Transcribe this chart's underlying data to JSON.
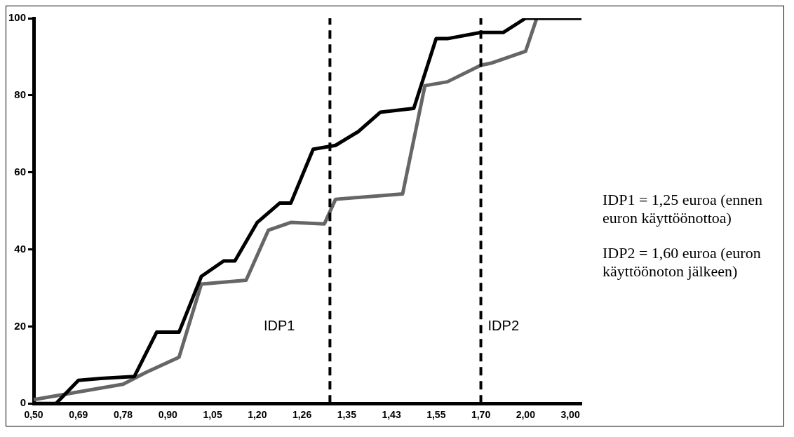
{
  "chart_data": {
    "type": "line",
    "categories": [
      "0,50",
      null,
      null,
      null,
      "0,69",
      null,
      null,
      null,
      "0,78",
      null,
      null,
      null,
      "0,90",
      null,
      null,
      null,
      "1,05",
      null,
      null,
      null,
      "1,20",
      null,
      null,
      null,
      "1,26",
      null,
      null,
      null,
      "1,35",
      null,
      null,
      null,
      "1,43",
      null,
      null,
      null,
      "1,55",
      null,
      null,
      null,
      "1,70",
      null,
      null,
      null,
      "2,00",
      null,
      null,
      null,
      "3,00",
      null
    ],
    "ylim": [
      0,
      100
    ],
    "yticks": [
      0,
      20,
      40,
      60,
      80,
      100
    ],
    "grid": false,
    "legend": false,
    "marker": "none",
    "line_style": "solid",
    "series": [
      {
        "color": "#000000",
        "values": [
          0,
          null,
          0,
          null,
          6,
          null,
          6.5,
          null,
          null,
          7,
          null,
          18.5,
          null,
          18.5,
          null,
          33,
          null,
          37,
          37,
          null,
          47,
          null,
          52,
          52,
          null,
          66,
          null,
          67,
          null,
          70.5,
          null,
          75.6,
          null,
          null,
          76.6,
          null,
          94.7,
          94.7,
          null,
          null,
          96.3,
          null,
          96.3,
          null,
          100,
          null,
          null,
          null,
          null,
          100
        ]
      },
      {
        "color": "#666666",
        "values": [
          1,
          null,
          null,
          null,
          3,
          null,
          null,
          null,
          5,
          null,
          8,
          null,
          null,
          12,
          null,
          31,
          null,
          null,
          null,
          32,
          null,
          45,
          null,
          47,
          null,
          null,
          46.6,
          53,
          null,
          null,
          null,
          null,
          null,
          54.4,
          null,
          82.5,
          null,
          83.5,
          null,
          null,
          87.8,
          88.4,
          null,
          null,
          91.4,
          100,
          null,
          null,
          null,
          100
        ]
      }
    ],
    "ref_lines": [
      {
        "axis": "x",
        "value": "1,70",
        "label": "IDP2",
        "color": "#000000",
        "line_style": "dashed"
      }
    ],
    "annotations": [
      "IDP1",
      "IDP1 = 1,25 euroa (ennen euron käyttöönottoa)",
      "IDP2 = 1,60 euroa (euron käyttöönoton jälkeen)"
    ]
  }
}
